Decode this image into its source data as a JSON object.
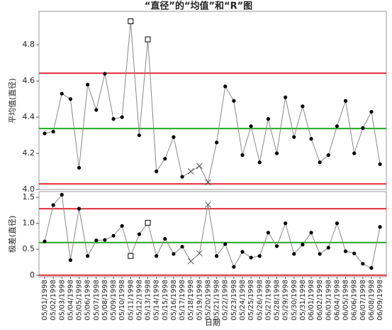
{
  "chart_data": [
    {
      "type": "line",
      "title": "“直径”的“均值”和“R”图",
      "y_label": "平均值(直径)",
      "color": "#888888",
      "values": [
        4.31,
        4.32,
        4.53,
        4.5,
        4.12,
        4.58,
        4.44,
        4.64,
        4.39,
        4.4,
        4.93,
        4.3,
        4.83,
        4.1,
        4.17,
        4.29,
        4.07,
        4.1,
        4.13,
        4.04,
        4.26,
        4.57,
        4.49,
        4.19,
        4.35,
        4.15,
        4.39,
        4.2,
        4.51,
        4.29,
        4.46,
        4.28,
        4.15,
        4.19,
        4.35,
        4.49,
        4.2,
        4.34,
        4.43,
        4.14
      ],
      "markers": [
        "dot",
        "dot",
        "dot",
        "dot",
        "dot",
        "dot",
        "dot",
        "dot",
        "dot",
        "dot",
        "box",
        "dot",
        "box",
        "dot",
        "dot",
        "dot",
        "dot",
        "x",
        "x",
        "x",
        "dot",
        "dot",
        "dot",
        "dot",
        "dot",
        "dot",
        "dot",
        "dot",
        "dot",
        "dot",
        "dot",
        "dot",
        "dot",
        "dot",
        "dot",
        "dot",
        "dot",
        "dot",
        "dot",
        "dot"
      ],
      "ucl": 4.643,
      "cl": 4.337,
      "lcl": 4.031,
      "limit_color": "#e0303a",
      "center_color": "#22aa22",
      "ylim": [
        4.0,
        4.985
      ],
      "yticks": [
        {
          "value": 4,
          "label": "4.0"
        },
        4.2,
        4.4,
        4.6,
        4.8
      ]
    },
    {
      "type": "line",
      "y_label": "极差(直径)",
      "x_label": "日期",
      "color": "#888888",
      "categories": [
        "05/01/1998",
        "05/02/1998",
        "05/03/1998",
        "05/04/1998",
        "05/05/1998",
        "05/06/1998",
        "05/07/1998",
        "05/08/1998",
        "05/09/1998",
        "05/10/1998",
        "05/11/1998",
        "05/12/1998",
        "05/13/1998",
        "05/14/1998",
        "05/15/1998",
        "05/16/1998",
        "05/17/1998",
        "05/18/1998",
        "05/19/1998",
        "05/20/1998",
        "05/21/1998",
        "05/22/1998",
        "05/23/1998",
        "05/24/1998",
        "05/25/1998",
        "05/26/1998",
        "05/27/1998",
        "05/28/1998",
        "05/29/1998",
        "05/30/1998",
        "05/31/1998",
        "06/01/1998",
        "06/02/1998",
        "06/03/1998",
        "06/04/1998",
        "06/05/1998",
        "06/06/1998",
        "06/07/1998",
        "06/08/1998",
        "06/09/1998"
      ],
      "values": [
        0.65,
        1.35,
        1.55,
        0.29,
        1.28,
        0.37,
        0.67,
        0.68,
        0.76,
        0.95,
        0.37,
        0.79,
        1.01,
        0.37,
        0.7,
        0.41,
        0.55,
        0.27,
        0.42,
        1.36,
        0.37,
        0.6,
        0.16,
        0.45,
        0.34,
        0.37,
        0.82,
        0.56,
        1.0,
        0.41,
        0.59,
        0.82,
        0.41,
        0.53,
        1.0,
        0.46,
        0.42,
        0.22,
        0.14,
        0.93
      ],
      "markers": [
        "dot",
        "dot",
        "dot",
        "dot",
        "dot",
        "dot",
        "dot",
        "dot",
        "dot",
        "dot",
        "box",
        "dot",
        "box",
        "dot",
        "dot",
        "dot",
        "dot",
        "x",
        "x",
        "x",
        "dot",
        "dot",
        "dot",
        "dot",
        "dot",
        "dot",
        "dot",
        "dot",
        "dot",
        "dot",
        "dot",
        "dot",
        "dot",
        "dot",
        "dot",
        "dot",
        "dot",
        "dot",
        "dot",
        "dot"
      ],
      "ucl": 1.28,
      "cl": 0.63,
      "lcl": 0,
      "limit_color": "#e0303a",
      "center_color": "#22aa22",
      "ylim": [
        -0.03,
        1.61
      ],
      "yticks": [
        0,
        0.5,
        {
          "value": 1,
          "label": "1.0"
        },
        1.5
      ]
    }
  ]
}
